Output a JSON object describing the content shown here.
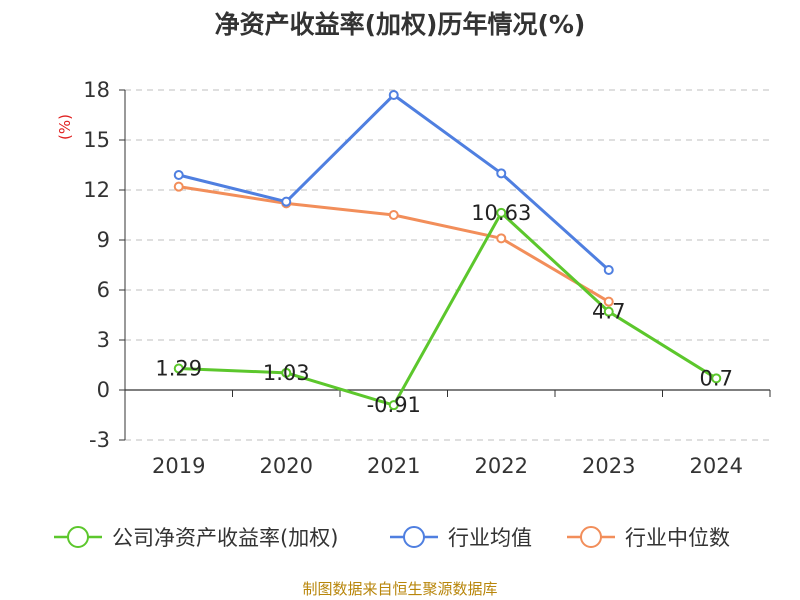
{
  "chart_data": {
    "type": "line",
    "title": "净资产收益率(加权)历年情况(%)",
    "ylabel": "(%)",
    "xlabel": "",
    "categories": [
      "2019",
      "2020",
      "2021",
      "2022",
      "2023",
      "2024"
    ],
    "ylim": [
      -3,
      18
    ],
    "yticks": [
      -3,
      0,
      3,
      6,
      9,
      12,
      15,
      18
    ],
    "grid": true,
    "grid_style": "dashed",
    "legend_position": "bottom",
    "series": [
      {
        "name": "公司净资产收益率(加权)",
        "color": "#5cc72c",
        "values": [
          1.29,
          1.03,
          -0.91,
          10.63,
          4.7,
          0.7
        ],
        "labels": [
          "1.29",
          "1.03",
          "-0.91",
          "10.63",
          "4.7",
          "0.7"
        ]
      },
      {
        "name": "行业均值",
        "color": "#4f7fe0",
        "values": [
          12.9,
          11.3,
          17.7,
          13.0,
          7.2,
          null
        ]
      },
      {
        "name": "行业中位数",
        "color": "#f28e5a",
        "values": [
          12.2,
          11.2,
          10.5,
          9.1,
          5.3,
          null
        ]
      }
    ],
    "source": "制图数据来自恒生聚源数据库"
  }
}
